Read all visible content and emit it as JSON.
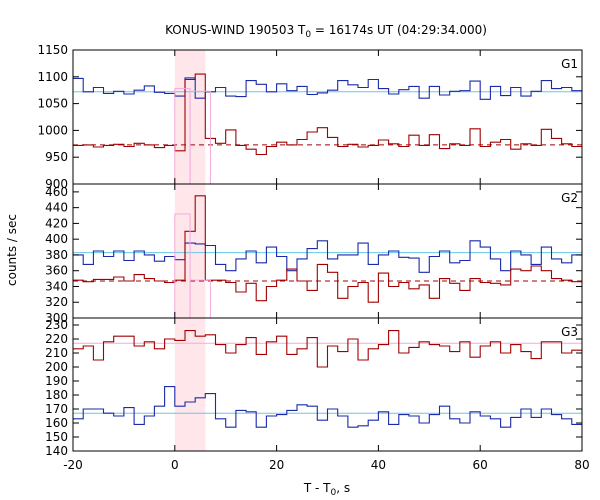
{
  "title": "KONUS-WIND 190503 T",
  "title_sub": "0",
  "title_rest": " = 16174s UT (04:29:34.000)",
  "ylabel": "counts / sec",
  "xlabel_main": "T - T",
  "xlabel_sub": "0",
  "xlabel_unit": ", s",
  "colors": {
    "red": "#a00000",
    "blue": "#1a2aa8",
    "cyan": "#66c8e8",
    "pink": "#f4aadc",
    "shade": "#ffe6ea"
  },
  "chart_data": {
    "type": "line",
    "xlim": [
      -20,
      80
    ],
    "x_ticks": [
      "-20",
      "0",
      "20",
      "40",
      "60",
      "80"
    ],
    "highlight_interval": [
      0,
      6
    ],
    "bin_edges": [
      -20,
      -18,
      -16,
      -14,
      -12,
      -10,
      -8,
      -6,
      -4,
      -2,
      0,
      2,
      4,
      6,
      8,
      10,
      12,
      14,
      16,
      18,
      20,
      22,
      24,
      26,
      28,
      30,
      32,
      34,
      36,
      38,
      40,
      42,
      44,
      46,
      48,
      50,
      52,
      54,
      56,
      58,
      60,
      62,
      64,
      66,
      68,
      70,
      72,
      74,
      76,
      78,
      80
    ],
    "panels": [
      {
        "name": "G1",
        "ylim": [
          900,
          1150
        ],
        "y_ticks": [
          "900",
          "950",
          "1000",
          "1050",
          "1100",
          "1150"
        ],
        "series": [
          {
            "color": "blue",
            "values": [
              1097,
              1072,
              1080,
              1069,
              1073,
              1068,
              1075,
              1083,
              1071,
              1069,
              1064,
              1098,
              1060,
              1072,
              1080,
              1064,
              1063,
              1093,
              1086,
              1072,
              1087,
              1074,
              1082,
              1067,
              1070,
              1075,
              1093,
              1085,
              1080,
              1095,
              1078,
              1068,
              1076,
              1082,
              1060,
              1082,
              1066,
              1073,
              1074,
              1092,
              1058,
              1082,
              1065,
              1080,
              1064,
              1073,
              1093,
              1078,
              1080,
              1074
            ]
          },
          {
            "color": "red",
            "values": [
              972,
              973,
              969,
              972,
              974,
              970,
              976,
              973,
              968,
              972,
              962,
              1095,
              1105,
              985,
              976,
              1001,
              972,
              965,
              955,
              970,
              978,
              973,
              983,
              997,
              1005,
              987,
              970,
              974,
              969,
              972,
              982,
              975,
              970,
              991,
              972,
              992,
              966,
              975,
              972,
              1003,
              970,
              978,
              983,
              965,
              975,
              972,
              1002,
              985,
              975,
              970
            ]
          }
        ],
        "fits": [
          {
            "color": "cyan",
            "dash": false,
            "value": 1072
          },
          {
            "color": "red",
            "dash": true,
            "value": 973
          }
        ],
        "extra": [
          {
            "color": "pink",
            "bins": [
              [
                0,
                3,
                1078
              ],
              [
                3,
                7,
                1073
              ]
            ]
          }
        ]
      },
      {
        "name": "G2",
        "ylim": [
          300,
          470
        ],
        "y_ticks": [
          "300",
          "320",
          "340",
          "360",
          "380",
          "400",
          "420",
          "440",
          "460"
        ],
        "series": [
          {
            "color": "blue",
            "values": [
              380,
              368,
              385,
              378,
              385,
              373,
              385,
              380,
              372,
              378,
              374,
              395,
              394,
              392,
              368,
              360,
              375,
              385,
              370,
              390,
              378,
              360,
              375,
              388,
              398,
              375,
              380,
              380,
              395,
              368,
              380,
              385,
              377,
              376,
              358,
              378,
              385,
              370,
              373,
              398,
              390,
              375,
              360,
              385,
              380,
              368,
              390,
              375,
              370,
              380
            ]
          },
          {
            "color": "red",
            "values": [
              348,
              346,
              349,
              349,
              352,
              347,
              355,
              350,
              347,
              345,
              348,
              410,
              455,
              348,
              348,
              345,
              333,
              344,
              322,
              340,
              348,
              362,
              347,
              335,
              368,
              358,
              325,
              340,
              345,
              320,
              357,
              340,
              345,
              337,
              342,
              325,
              350,
              344,
              335,
              350,
              345,
              344,
              342,
              362,
              360,
              366,
              360,
              350,
              348,
              346
            ]
          }
        ],
        "fits": [
          {
            "color": "cyan",
            "dash": false,
            "value": 383
          },
          {
            "color": "red",
            "dash": true,
            "value": 347
          }
        ],
        "extra": [
          {
            "color": "pink",
            "bins": [
              [
                0,
                3,
                432
              ],
              [
                3,
                7,
                348
              ]
            ]
          }
        ]
      },
      {
        "name": "G3",
        "ylim": [
          140,
          235
        ],
        "y_ticks": [
          "140",
          "150",
          "160",
          "170",
          "180",
          "190",
          "200",
          "210",
          "220",
          "230"
        ],
        "series": [
          {
            "color": "red",
            "values": [
              213,
              215,
              205,
              218,
              222,
              222,
              215,
              218,
              213,
              220,
              219,
              226,
              222,
              223,
              216,
              210,
              216,
              221,
              209,
              218,
              222,
              209,
              213,
              221,
              200,
              215,
              211,
              220,
              205,
              213,
              216,
              226,
              210,
              214,
              218,
              216,
              215,
              211,
              218,
              207,
              215,
              218,
              210,
              216,
              211,
              206,
              218,
              218,
              210,
              212
            ]
          },
          {
            "color": "blue",
            "values": [
              163,
              170,
              170,
              167,
              165,
              171,
              159,
              165,
              172,
              186,
              172,
              175,
              178,
              181,
              163,
              157,
              169,
              168,
              157,
              165,
              166,
              169,
              173,
              172,
              162,
              170,
              165,
              157,
              158,
              162,
              168,
              159,
              166,
              165,
              160,
              166,
              172,
              163,
              160,
              168,
              165,
              163,
              157,
              164,
              170,
              164,
              170,
              166,
              163,
              159
            ]
          }
        ],
        "fits": [
          {
            "color": "cyan",
            "dash": false,
            "value": 167
          },
          {
            "color": "pink",
            "dash": false,
            "value": 217
          }
        ],
        "extra": []
      }
    ]
  }
}
